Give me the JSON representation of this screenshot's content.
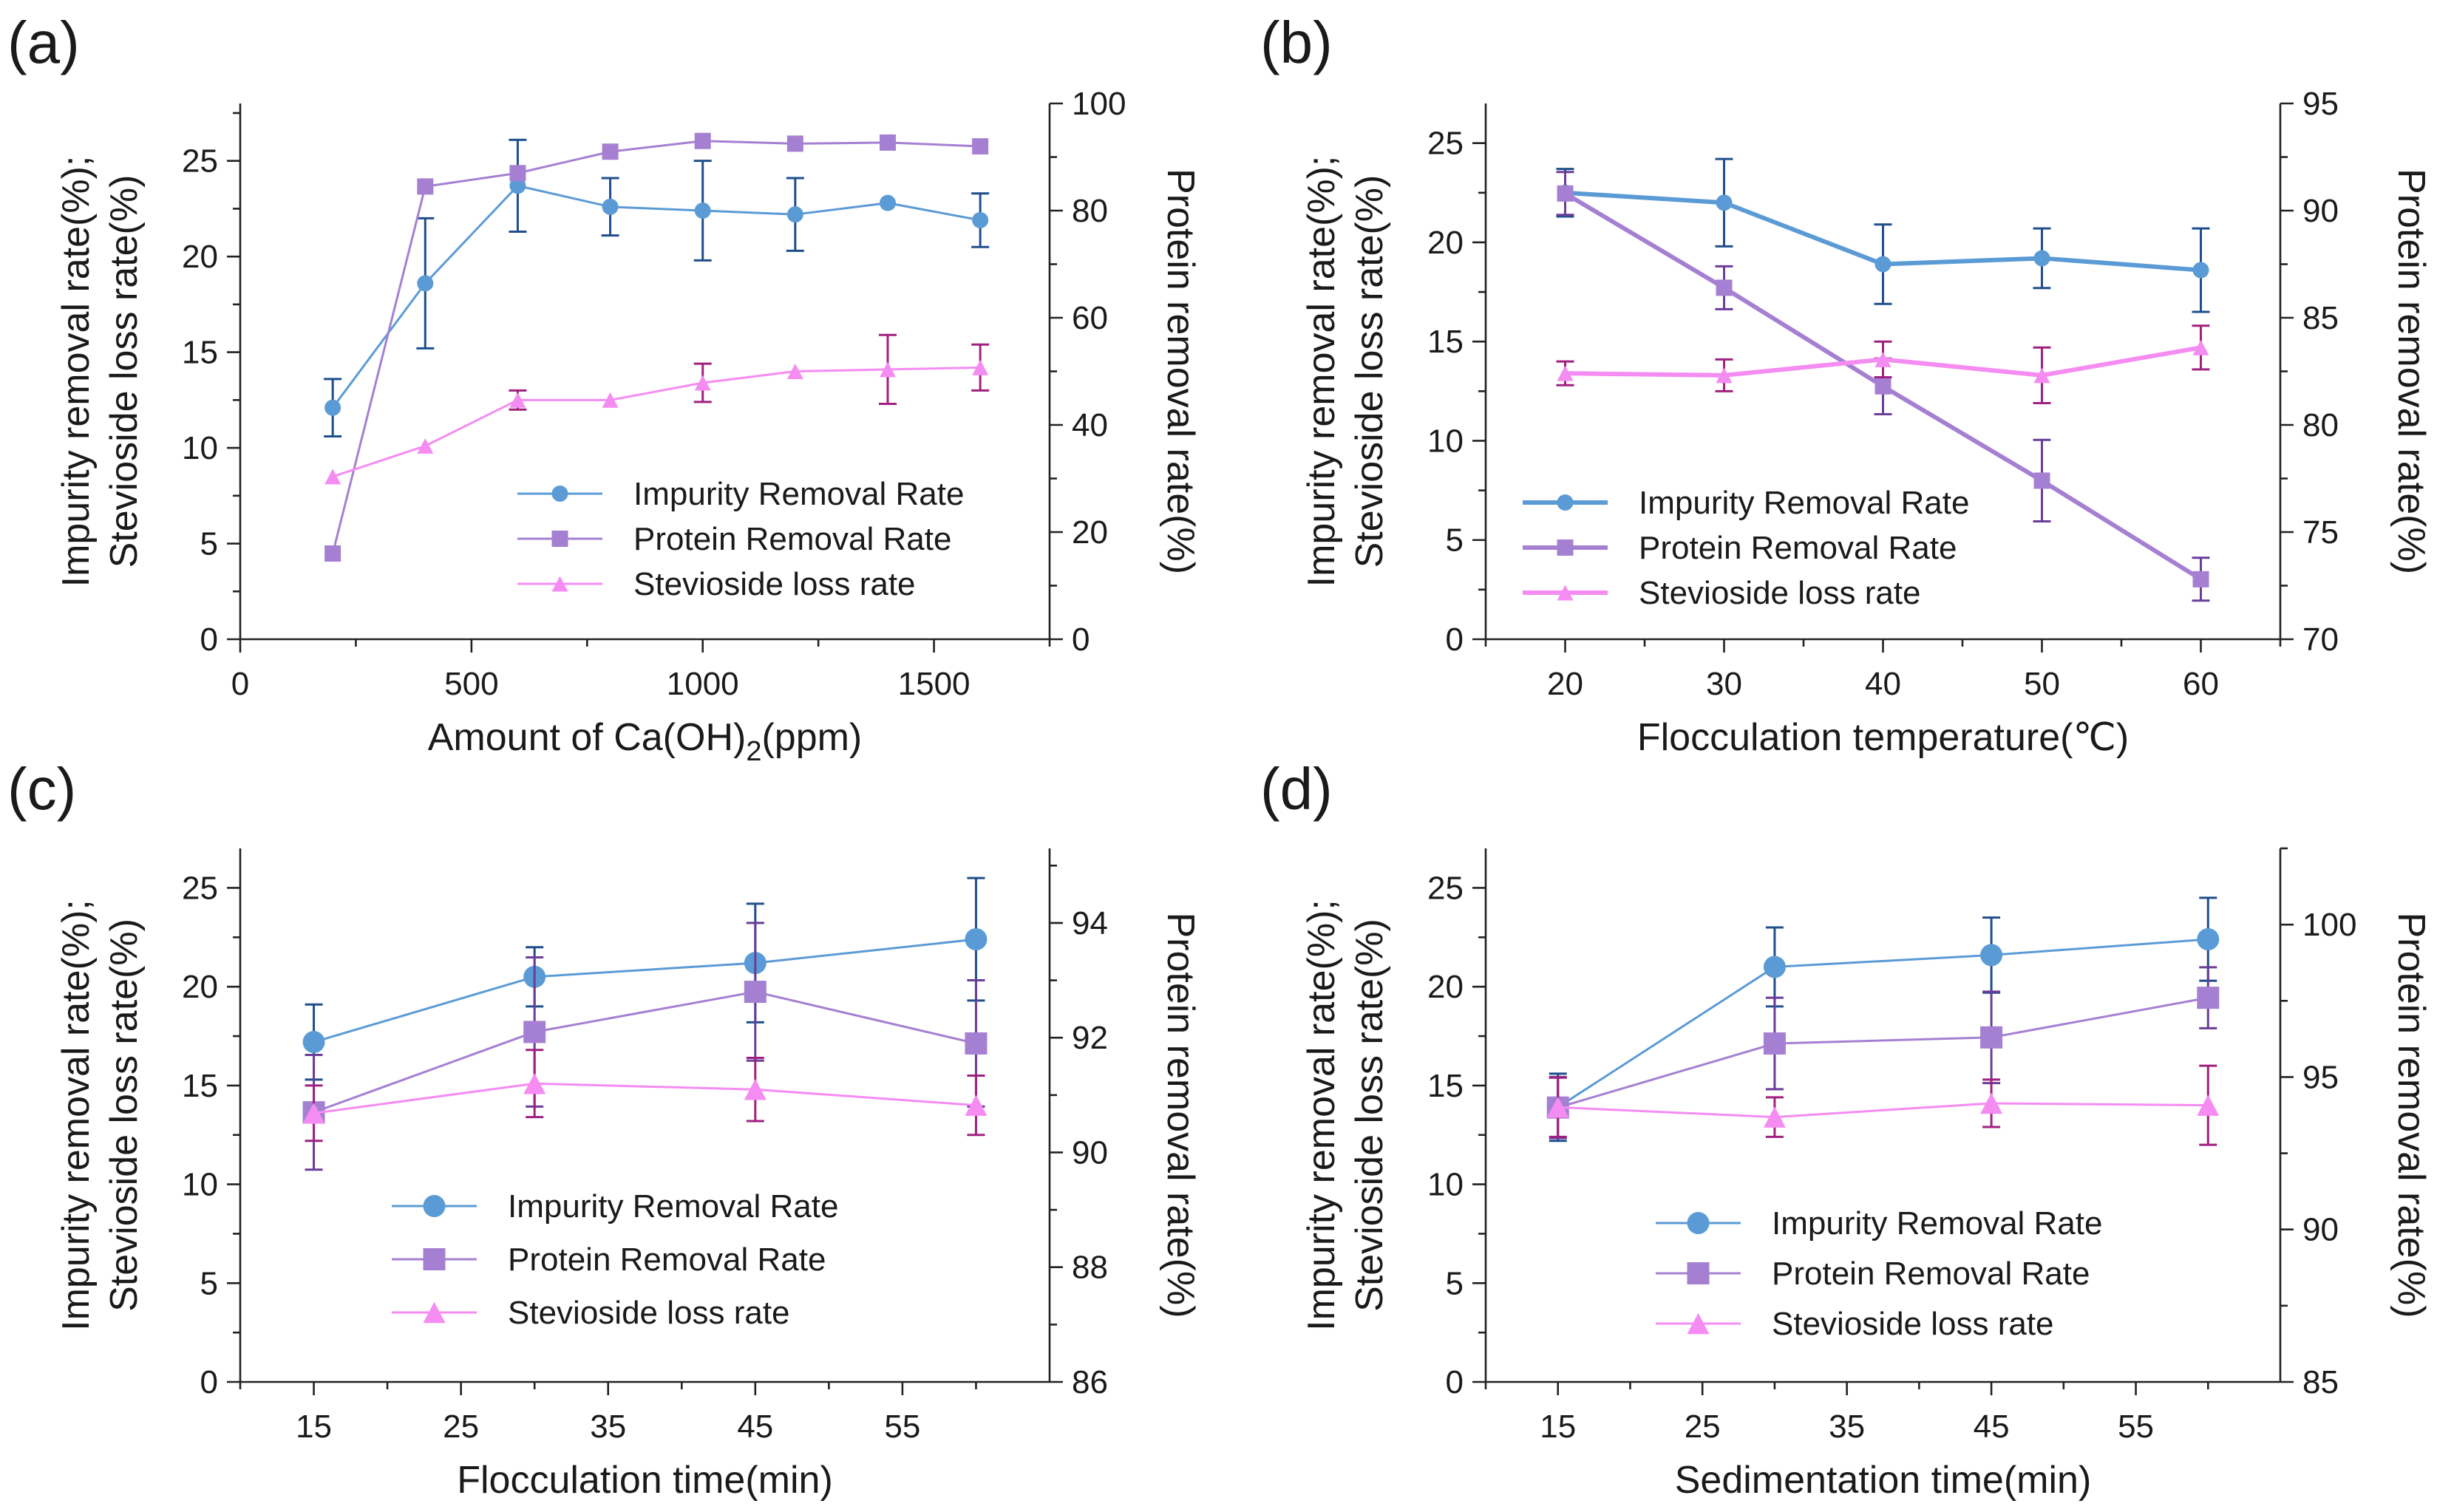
{
  "colors": {
    "impurity": "#5b9bd5",
    "impurity_err": "#1f4e8c",
    "protein": "#a580d2",
    "protein_err": "#6a3d99",
    "stevioside": "#f58cf2",
    "stevioside_err": "#a0207f"
  },
  "chart_data": [
    {
      "panel": "(a)",
      "type": "line",
      "xlabel": "Amount of Ca(OH)2(ppm)",
      "xlabel_main": "Amount of Ca(OH)",
      "xlabel_sub": "2",
      "xlabel_tail": "(ppm)",
      "ylabel_left_line1": "Impurity removal rate(%);",
      "ylabel_left_line2": "Stevioside loss rate(%)",
      "ylabel_right": "Protein removal rate(%)",
      "xlim": [
        0,
        1750
      ],
      "xticks": [
        0,
        500,
        1000,
        1500
      ],
      "xtick_labels": [
        "0",
        "500",
        "1000",
        "1500"
      ],
      "ylim_left": [
        0,
        28
      ],
      "yticks_left": [
        0,
        5,
        10,
        15,
        20,
        25
      ],
      "ylim_right": [
        0,
        100
      ],
      "yticks_right": [
        0,
        20,
        40,
        60,
        80,
        100
      ],
      "legend_position": "lower-right",
      "series": [
        {
          "name": "Impurity Removal Rate",
          "axis": "left",
          "marker": "circle",
          "color_key": "impurity",
          "x": [
            200,
            400,
            600,
            800,
            1000,
            1200,
            1400,
            1600
          ],
          "values": [
            12.1,
            18.6,
            23.7,
            22.6,
            22.4,
            22.2,
            22.8,
            21.9
          ],
          "errors": [
            1.5,
            3.4,
            2.4,
            1.5,
            2.6,
            1.9,
            0,
            1.4
          ]
        },
        {
          "name": "Protein Removal Rate",
          "axis": "right",
          "marker": "square",
          "color_key": "protein",
          "x": [
            200,
            400,
            600,
            800,
            1000,
            1200,
            1400,
            1600
          ],
          "values": [
            16,
            84.5,
            87,
            91,
            93,
            92.5,
            92.7,
            92
          ]
        },
        {
          "name": "Stevioside loss rate",
          "axis": "left",
          "marker": "triangle",
          "color_key": "stevioside",
          "x": [
            200,
            400,
            600,
            800,
            1000,
            1200,
            1400,
            1600
          ],
          "values": [
            8.5,
            10.1,
            12.5,
            12.5,
            13.4,
            14.0,
            14.1,
            14.2
          ],
          "errors": [
            0,
            0,
            0.5,
            0,
            1.0,
            0,
            1.8,
            1.2
          ]
        }
      ]
    },
    {
      "panel": "(b)",
      "type": "line",
      "xlabel": "Flocculation temperature(℃)",
      "ylabel_left_line1": "Impurity removal rate(%);",
      "ylabel_left_line2": "Stevioside loss rate(%)",
      "ylabel_right": "Protein removal rate(%)",
      "xlim": [
        15,
        65
      ],
      "xticks": [
        20,
        30,
        40,
        50,
        60
      ],
      "xtick_labels": [
        "20",
        "30",
        "40",
        "50",
        "60"
      ],
      "ylim_left": [
        0,
        27
      ],
      "yticks_left": [
        0,
        5,
        10,
        15,
        20,
        25
      ],
      "ylim_right": [
        70,
        95
      ],
      "yticks_right": [
        70,
        75,
        80,
        85,
        90,
        95
      ],
      "legend_position": "lower-left",
      "series": [
        {
          "name": "Impurity Removal Rate",
          "axis": "left",
          "marker": "circle",
          "color_key": "impurity",
          "x": [
            20,
            30,
            40,
            50,
            60
          ],
          "values": [
            22.5,
            22.0,
            18.9,
            19.2,
            18.6
          ],
          "errors": [
            1.2,
            2.2,
            2.0,
            1.5,
            2.1
          ]
        },
        {
          "name": "Protein Removal Rate",
          "axis": "right",
          "marker": "square",
          "color_key": "protein",
          "x": [
            20,
            30,
            40,
            50,
            60
          ],
          "values": [
            90.8,
            86.4,
            81.8,
            77.4,
            72.8
          ],
          "errors": [
            1.0,
            1.0,
            1.3,
            1.9,
            1.0
          ]
        },
        {
          "name": "Stevioside loss rate",
          "axis": "left",
          "marker": "triangle",
          "color_key": "stevioside",
          "x": [
            20,
            30,
            40,
            50,
            60
          ],
          "values": [
            13.4,
            13.3,
            14.1,
            13.3,
            14.7
          ],
          "errors": [
            0.6,
            0.8,
            0.9,
            1.4,
            1.1
          ]
        }
      ]
    },
    {
      "panel": "(c)",
      "type": "line",
      "xlabel": "Flocculation time(min)",
      "ylabel_left_line1": "Impurity removal rate(%);",
      "ylabel_left_line2": "Stevioside loss rate(%)",
      "ylabel_right": "Protein removal rate(%)",
      "xlim": [
        10,
        65
      ],
      "xticks": [
        15,
        25,
        35,
        45,
        55
      ],
      "xtick_labels": [
        "15",
        "25",
        "35",
        "45",
        "55"
      ],
      "ylim_left": [
        0,
        27
      ],
      "yticks_left": [
        0,
        5,
        10,
        15,
        20,
        25
      ],
      "ylim_right": [
        86,
        95.3
      ],
      "yticks_right": [
        86,
        88,
        90,
        92,
        94
      ],
      "legend_position": "lower-center",
      "series": [
        {
          "name": "Impurity Removal Rate",
          "axis": "left",
          "marker": "circle",
          "color_key": "impurity",
          "x": [
            15,
            30,
            45,
            60
          ],
          "values": [
            17.2,
            20.5,
            21.2,
            22.4
          ],
          "errors": [
            1.9,
            1.5,
            3.0,
            3.1
          ]
        },
        {
          "name": "Protein Removal Rate",
          "axis": "right",
          "marker": "square",
          "color_key": "protein",
          "x": [
            15,
            30,
            45,
            60
          ],
          "values": [
            90.7,
            92.1,
            92.8,
            91.9
          ],
          "errors": [
            1.0,
            1.3,
            1.2,
            1.1
          ]
        },
        {
          "name": "Stevioside loss rate",
          "axis": "left",
          "marker": "triangle",
          "color_key": "stevioside",
          "x": [
            15,
            30,
            45,
            60
          ],
          "values": [
            13.6,
            15.1,
            14.8,
            14.0
          ],
          "errors": [
            1.4,
            1.7,
            1.6,
            1.5
          ]
        }
      ]
    },
    {
      "panel": "(d)",
      "type": "line",
      "xlabel": "Sedimentation time(min)",
      "ylabel_left_line1": "Impurity removal rate(%);",
      "ylabel_left_line2": "Stevioside loss rate(%)",
      "ylabel_right": "Protein removal rate(%)",
      "xlim": [
        10,
        65
      ],
      "xticks": [
        15,
        25,
        35,
        45,
        55
      ],
      "xtick_labels": [
        "15",
        "25",
        "35",
        "45",
        "55"
      ],
      "ylim_left": [
        0,
        27
      ],
      "yticks_left": [
        0,
        5,
        10,
        15,
        20,
        25
      ],
      "ylim_right": [
        85,
        102.5
      ],
      "yticks_right": [
        85,
        90,
        95,
        100
      ],
      "legend_position": "lower-center",
      "series": [
        {
          "name": "Impurity Removal Rate",
          "axis": "left",
          "marker": "circle",
          "color_key": "impurity",
          "x": [
            15,
            30,
            45,
            60
          ],
          "values": [
            13.9,
            21.0,
            21.6,
            22.4
          ],
          "errors": [
            1.7,
            2.0,
            1.9,
            2.1
          ]
        },
        {
          "name": "Protein Removal Rate",
          "axis": "right",
          "marker": "square",
          "color_key": "protein",
          "x": [
            15,
            30,
            45,
            60
          ],
          "values": [
            94.0,
            96.1,
            96.3,
            97.6
          ],
          "errors": [
            1.0,
            1.5,
            1.5,
            1.0
          ]
        },
        {
          "name": "Stevioside loss rate",
          "axis": "left",
          "marker": "triangle",
          "color_key": "stevioside",
          "x": [
            15,
            30,
            45,
            60
          ],
          "values": [
            13.9,
            13.4,
            14.1,
            14.0
          ],
          "errors": [
            1.5,
            1.0,
            1.2,
            2.0
          ]
        }
      ]
    }
  ]
}
